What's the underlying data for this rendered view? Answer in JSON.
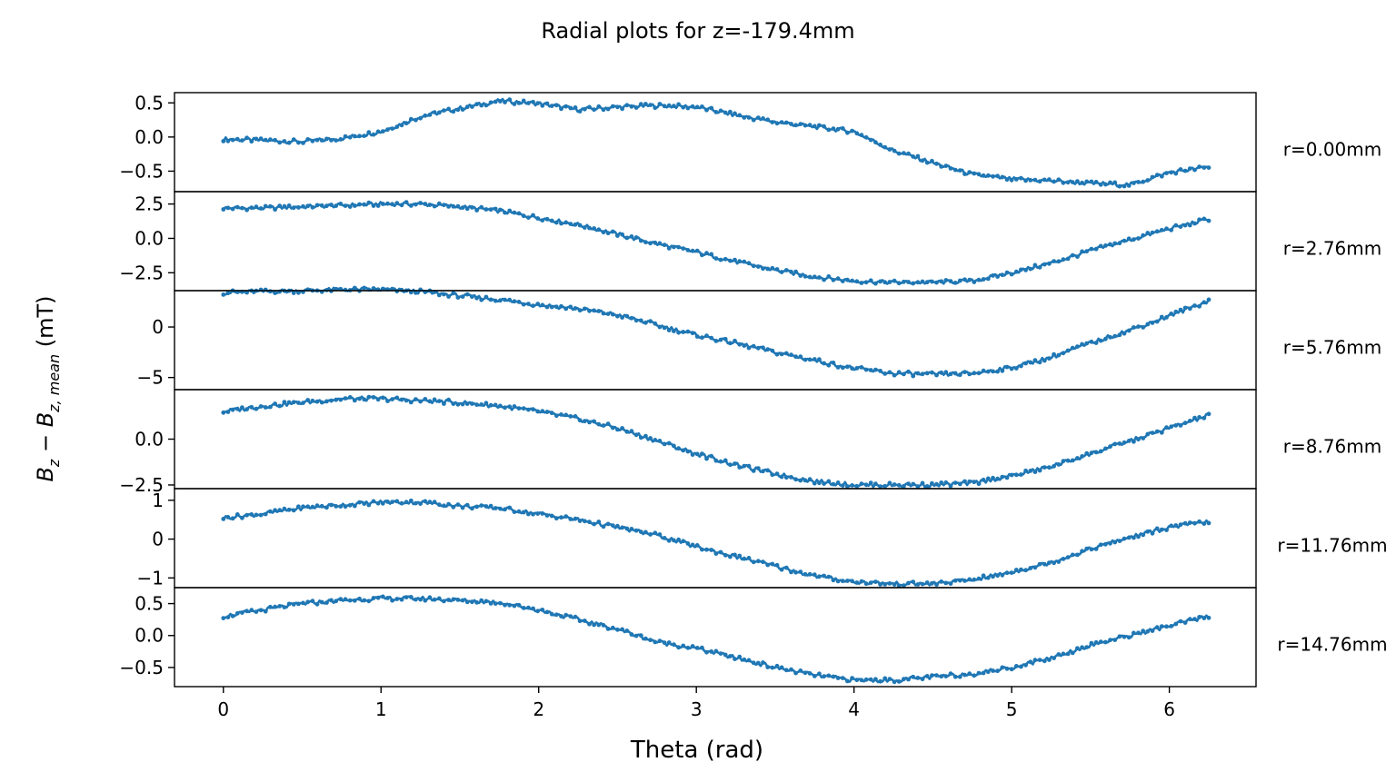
{
  "chart_data": {
    "type": "scatter",
    "title": "Radial plots for z=-179.4mm",
    "xlabel": "Theta (rad)",
    "ylabel": "B_z − B_z,mean (mT)",
    "xlim": [
      -0.31,
      6.55
    ],
    "x_ticks": [
      0,
      1,
      2,
      3,
      4,
      5,
      6
    ],
    "color": "#1f77b4",
    "marker": "line with small dot markers",
    "grid": false,
    "panels": [
      {
        "label": "r=0.00mm",
        "ylim": [
          -0.8,
          0.65
        ],
        "y_ticks": [
          -0.5,
          0.0,
          0.5
        ],
        "y_tick_labels": [
          "−0.5",
          "0.0",
          "0.5"
        ],
        "x": [
          0,
          0.25,
          0.5,
          0.75,
          1.0,
          1.25,
          1.5,
          1.75,
          2.0,
          2.25,
          2.5,
          2.75,
          3.0,
          3.25,
          3.5,
          3.75,
          4.0,
          4.25,
          4.5,
          4.75,
          5.0,
          5.25,
          5.5,
          5.75,
          6.0,
          6.25
        ],
        "values": [
          -0.03,
          -0.05,
          -0.07,
          -0.02,
          0.08,
          0.3,
          0.42,
          0.53,
          0.49,
          0.4,
          0.44,
          0.46,
          0.44,
          0.32,
          0.22,
          0.15,
          0.08,
          -0.2,
          -0.38,
          -0.55,
          -0.62,
          -0.64,
          -0.68,
          -0.7,
          -0.52,
          -0.44
        ]
      },
      {
        "label": "r=2.76mm",
        "ylim": [
          -3.8,
          3.4
        ],
        "y_ticks": [
          -2.5,
          0.0,
          2.5
        ],
        "y_tick_labels": [
          "−2.5",
          "0.0",
          "2.5"
        ],
        "x": [
          0,
          0.25,
          0.5,
          0.75,
          1.0,
          1.25,
          1.5,
          1.75,
          2.0,
          2.25,
          2.5,
          2.75,
          3.0,
          3.25,
          3.5,
          3.75,
          4.0,
          4.25,
          4.5,
          4.75,
          5.0,
          5.25,
          5.5,
          5.75,
          6.0,
          6.25
        ],
        "values": [
          2.2,
          2.2,
          2.3,
          2.4,
          2.5,
          2.5,
          2.3,
          2.0,
          1.5,
          1.0,
          0.3,
          -0.4,
          -1.0,
          -1.7,
          -2.3,
          -2.8,
          -3.1,
          -3.2,
          -3.2,
          -3.1,
          -2.5,
          -1.8,
          -0.9,
          -0.1,
          0.7,
          1.4
        ]
      },
      {
        "label": "r=5.76mm",
        "ylim": [
          -6.2,
          3.6
        ],
        "y_ticks": [
          -5,
          0
        ],
        "y_tick_labels": [
          "−5",
          "0"
        ],
        "x": [
          0,
          0.25,
          0.5,
          0.75,
          1.0,
          1.25,
          1.5,
          1.75,
          2.0,
          2.25,
          2.5,
          2.75,
          3.0,
          3.25,
          3.5,
          3.75,
          4.0,
          4.25,
          4.5,
          4.75,
          5.0,
          5.25,
          5.5,
          5.75,
          6.0,
          6.25
        ],
        "values": [
          3.4,
          3.5,
          3.6,
          3.7,
          3.7,
          3.5,
          3.1,
          2.7,
          2.2,
          1.8,
          1.2,
          0.2,
          -0.8,
          -1.6,
          -2.5,
          -3.3,
          -4.1,
          -4.6,
          -4.7,
          -4.6,
          -4.0,
          -3.0,
          -1.6,
          -0.3,
          1.1,
          2.6
        ]
      },
      {
        "label": "r=8.76mm",
        "ylim": [
          -2.7,
          2.7
        ],
        "y_ticks": [
          -2.5,
          0.0
        ],
        "y_tick_labels": [
          "−2.5",
          "0.0"
        ],
        "x": [
          0,
          0.25,
          0.5,
          0.75,
          1.0,
          1.25,
          1.5,
          1.75,
          2.0,
          2.25,
          2.5,
          2.75,
          3.0,
          3.25,
          3.5,
          3.75,
          4.0,
          4.25,
          4.5,
          4.75,
          5.0,
          5.25,
          5.5,
          5.75,
          6.0,
          6.25
        ],
        "values": [
          1.5,
          1.8,
          2.0,
          2.2,
          2.2,
          2.1,
          2.0,
          1.8,
          1.5,
          1.1,
          0.6,
          -0.1,
          -0.8,
          -1.4,
          -1.9,
          -2.3,
          -2.5,
          -2.5,
          -2.5,
          -2.4,
          -2.0,
          -1.5,
          -0.8,
          -0.1,
          0.6,
          1.3
        ]
      },
      {
        "label": "r=11.76mm",
        "ylim": [
          -1.25,
          1.3
        ],
        "y_ticks": [
          -1,
          0,
          1
        ],
        "y_tick_labels": [
          "−1",
          "0",
          "1"
        ],
        "x": [
          0,
          0.25,
          0.5,
          0.75,
          1.0,
          1.25,
          1.5,
          1.75,
          2.0,
          2.25,
          2.5,
          2.75,
          3.0,
          3.25,
          3.5,
          3.75,
          4.0,
          4.25,
          4.5,
          4.75,
          5.0,
          5.25,
          5.5,
          5.75,
          6.0,
          6.25
        ],
        "values": [
          0.55,
          0.65,
          0.8,
          0.88,
          0.95,
          0.95,
          0.85,
          0.8,
          0.65,
          0.5,
          0.3,
          0.1,
          -0.2,
          -0.45,
          -0.7,
          -0.95,
          -1.1,
          -1.15,
          -1.15,
          -1.05,
          -0.85,
          -0.6,
          -0.25,
          0.05,
          0.3,
          0.45
        ]
      },
      {
        "label": "r=14.76mm",
        "ylim": [
          -0.8,
          0.75
        ],
        "y_ticks": [
          -0.5,
          0.0,
          0.5
        ],
        "y_tick_labels": [
          "−0.5",
          "0.0",
          "0.5"
        ],
        "x": [
          0,
          0.25,
          0.5,
          0.75,
          1.0,
          1.25,
          1.5,
          1.75,
          2.0,
          2.25,
          2.5,
          2.75,
          3.0,
          3.25,
          3.5,
          3.75,
          4.0,
          4.25,
          4.5,
          4.75,
          5.0,
          5.25,
          5.5,
          5.75,
          6.0,
          6.25
        ],
        "values": [
          0.3,
          0.4,
          0.5,
          0.55,
          0.58,
          0.58,
          0.55,
          0.52,
          0.4,
          0.25,
          0.1,
          -0.1,
          -0.2,
          -0.35,
          -0.5,
          -0.62,
          -0.7,
          -0.7,
          -0.65,
          -0.6,
          -0.5,
          -0.35,
          -0.15,
          0.0,
          0.15,
          0.3
        ]
      }
    ]
  }
}
